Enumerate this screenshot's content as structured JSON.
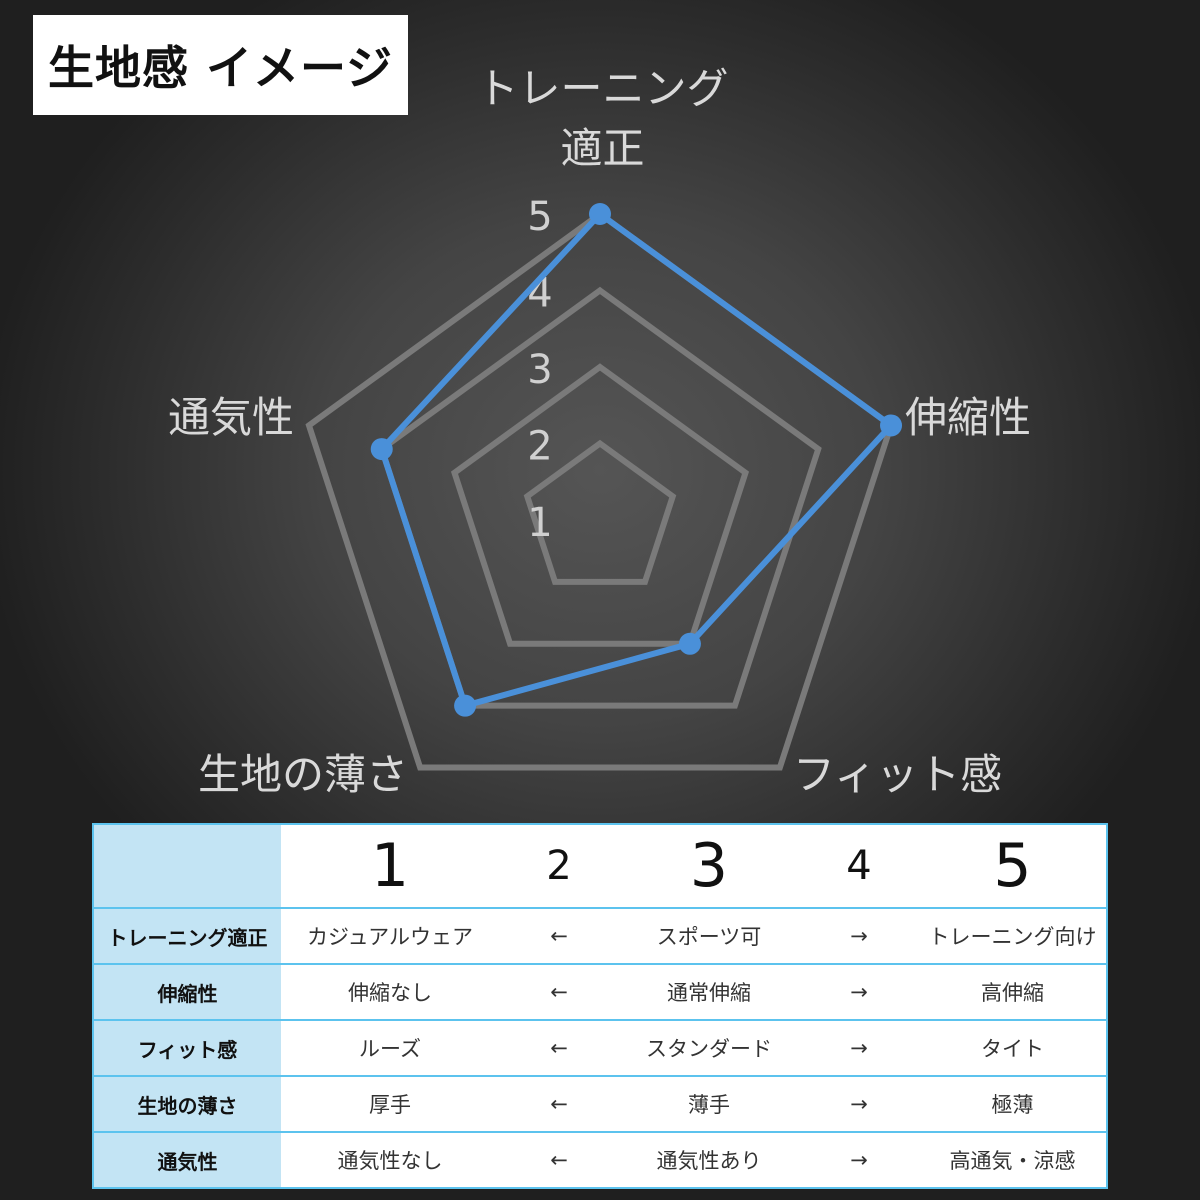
{
  "title": "生地感 イメージ",
  "chart_data": {
    "type": "radar",
    "axes": [
      "トレーニング適正",
      "伸縮性",
      "フィット感",
      "生地の薄さ",
      "通気性"
    ],
    "axis_label_lines": [
      [
        "トレーニング",
        "適正"
      ],
      [
        "伸縮性"
      ],
      [
        "フィット感"
      ],
      [
        "生地の薄さ"
      ],
      [
        "通気性"
      ]
    ],
    "values": [
      5,
      5,
      3,
      4,
      4
    ],
    "range": [
      1,
      5
    ],
    "ticks": [
      "1",
      "2",
      "3",
      "4",
      "5"
    ],
    "grid_levels": [
      2,
      3,
      4,
      5
    ],
    "series_color": "#4a90d9",
    "grid_color": "#7a7a7a"
  },
  "table": {
    "scale": [
      "1",
      "2",
      "3",
      "4",
      "5"
    ],
    "rows": [
      {
        "label": "トレーニング適正",
        "low": "カジュアルウェア",
        "left_arrow": "←",
        "mid": "スポーツ可",
        "right_arrow": "→",
        "high": "トレーニング向け"
      },
      {
        "label": "伸縮性",
        "low": "伸縮なし",
        "left_arrow": "←",
        "mid": "通常伸縮",
        "right_arrow": "→",
        "high": "高伸縮"
      },
      {
        "label": "フィット感",
        "low": "ルーズ",
        "left_arrow": "←",
        "mid": "スタンダード",
        "right_arrow": "→",
        "high": "タイト"
      },
      {
        "label": "生地の薄さ",
        "low": "厚手",
        "left_arrow": "←",
        "mid": "薄手",
        "right_arrow": "→",
        "high": "極薄"
      },
      {
        "label": "通気性",
        "low": "通気性なし",
        "left_arrow": "←",
        "mid": "通気性あり",
        "right_arrow": "→",
        "high": "高通気・涼感"
      }
    ]
  }
}
